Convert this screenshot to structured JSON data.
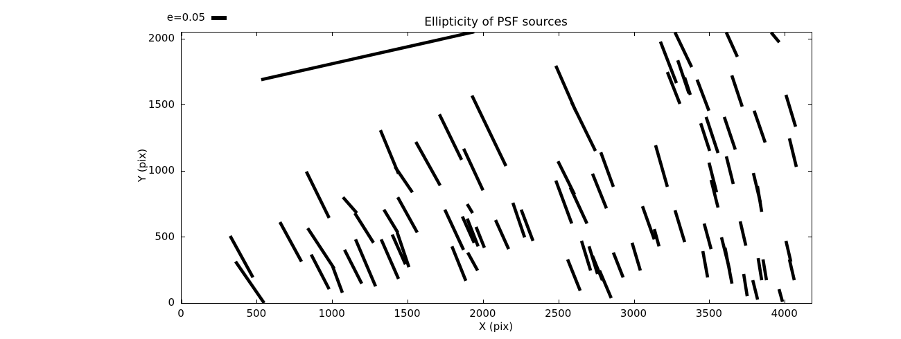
{
  "figure": {
    "title": "Ellipticity of PSF sources",
    "xlabel": "X (pix)",
    "ylabel": "Y (pix)",
    "legend": {
      "label": "e=0.05"
    }
  },
  "colors": {
    "stroke": "#000000",
    "background": "#ffffff"
  },
  "chart_data": {
    "type": "scatter",
    "subtype": "quiver-whiskers",
    "title": "Ellipticity of PSF sources",
    "xlabel": "X (pix)",
    "ylabel": "Y (pix)",
    "xlim": [
      0,
      4176
    ],
    "ylim": [
      0,
      2048
    ],
    "xticks": [
      0,
      500,
      1000,
      1500,
      2000,
      2500,
      3000,
      3500,
      4000
    ],
    "yticks": [
      0,
      500,
      1000,
      1500,
      2000
    ],
    "grid": false,
    "legend": {
      "label": "e=0.05",
      "ellipticity_reference": 0.05,
      "position": "top-left-outside"
    },
    "whisker_stroke_px": 4.6,
    "whiskers": [
      [
        528,
        1691,
        1939,
        2053
      ],
      [
        2481,
        1796,
        2614,
        1450
      ],
      [
        2586,
        1518,
        2743,
        1152
      ],
      [
        1709,
        1429,
        1856,
        1084
      ],
      [
        1925,
        1571,
        2150,
        1037
      ],
      [
        1318,
        1309,
        1438,
        979
      ],
      [
        1415,
        1031,
        1530,
        838
      ],
      [
        1553,
        1220,
        1714,
        890
      ],
      [
        1870,
        1168,
        1998,
        853
      ],
      [
        827,
        995,
        978,
        644
      ],
      [
        3174,
        1979,
        3280,
        1665
      ],
      [
        3271,
        2048,
        3381,
        1786
      ],
      [
        3289,
        1838,
        3363,
        1587
      ],
      [
        3220,
        1749,
        3303,
        1508
      ],
      [
        3417,
        1691,
        3495,
        1456
      ],
      [
        3611,
        2048,
        3684,
        1864
      ],
      [
        3647,
        1723,
        3716,
        1487
      ],
      [
        3908,
        2048,
        3962,
        1974
      ],
      [
        4006,
        1576,
        4070,
        1335
      ],
      [
        3795,
        1456,
        3868,
        1215
      ],
      [
        3335,
        1707,
        3372,
        1576
      ],
      [
        3142,
        1194,
        3220,
        880
      ],
      [
        3441,
        1361,
        3500,
        1152
      ],
      [
        3477,
        1409,
        3556,
        1136
      ],
      [
        3597,
        1409,
        3670,
        1162
      ],
      [
        4029,
        1246,
        4075,
        1031
      ],
      [
        3496,
        1063,
        3546,
        838
      ],
      [
        3510,
        932,
        3556,
        723
      ],
      [
        3611,
        1110,
        3657,
        901
      ],
      [
        3790,
        984,
        3836,
        764
      ],
      [
        3817,
        885,
        3845,
        691
      ],
      [
        2779,
        1141,
        2862,
        880
      ],
      [
        2495,
        1073,
        2605,
        822
      ],
      [
        2481,
        927,
        2586,
        602
      ],
      [
        2577,
        874,
        2687,
        602
      ],
      [
        2724,
        979,
        2816,
        717
      ],
      [
        2196,
        759,
        2274,
        497
      ],
      [
        2251,
        707,
        2329,
        471
      ],
      [
        3055,
        733,
        3133,
        482
      ],
      [
        322,
        508,
        473,
        194
      ],
      [
        358,
        314,
        547,
        0
      ],
      [
        652,
        613,
        795,
        314
      ],
      [
        836,
        566,
        1011,
        262
      ],
      [
        859,
        367,
        978,
        105
      ],
      [
        1001,
        278,
        1066,
        78
      ],
      [
        1070,
        801,
        1162,
        681
      ],
      [
        1148,
        681,
        1272,
        456
      ],
      [
        1080,
        403,
        1194,
        147
      ],
      [
        1153,
        482,
        1286,
        126
      ],
      [
        1323,
        482,
        1438,
        183
      ],
      [
        1341,
        707,
        1433,
        534
      ],
      [
        1433,
        801,
        1562,
        534
      ],
      [
        1396,
        518,
        1484,
        293
      ],
      [
        1429,
        534,
        1507,
        272
      ],
      [
        1745,
        707,
        1869,
        403
      ],
      [
        1861,
        655,
        1939,
        456
      ],
      [
        1893,
        749,
        1929,
        681
      ],
      [
        1893,
        639,
        1966,
        429
      ],
      [
        1792,
        429,
        1884,
        168
      ],
      [
        1897,
        382,
        1962,
        246
      ],
      [
        1952,
        576,
        2007,
        419
      ],
      [
        2081,
        628,
        2168,
        408
      ],
      [
        2651,
        471,
        2711,
        246
      ],
      [
        2701,
        429,
        2757,
        220
      ],
      [
        2724,
        356,
        2789,
        173
      ],
      [
        2770,
        246,
        2848,
        37
      ],
      [
        2559,
        330,
        2642,
        94
      ],
      [
        2862,
        382,
        2927,
        194
      ],
      [
        2986,
        456,
        3041,
        246
      ],
      [
        3133,
        560,
        3165,
        429
      ],
      [
        3271,
        702,
        3335,
        461
      ],
      [
        3464,
        602,
        3510,
        408
      ],
      [
        3455,
        393,
        3487,
        194
      ],
      [
        3579,
        497,
        3634,
        246
      ],
      [
        3602,
        419,
        3648,
        147
      ],
      [
        3703,
        618,
        3740,
        435
      ],
      [
        3726,
        220,
        3749,
        52
      ],
      [
        3786,
        173,
        3818,
        26
      ],
      [
        3822,
        340,
        3845,
        173
      ],
      [
        3854,
        330,
        3877,
        173
      ],
      [
        3960,
        105,
        3983,
        10
      ],
      [
        4006,
        471,
        4038,
        314
      ],
      [
        4029,
        330,
        4061,
        173
      ]
    ]
  }
}
